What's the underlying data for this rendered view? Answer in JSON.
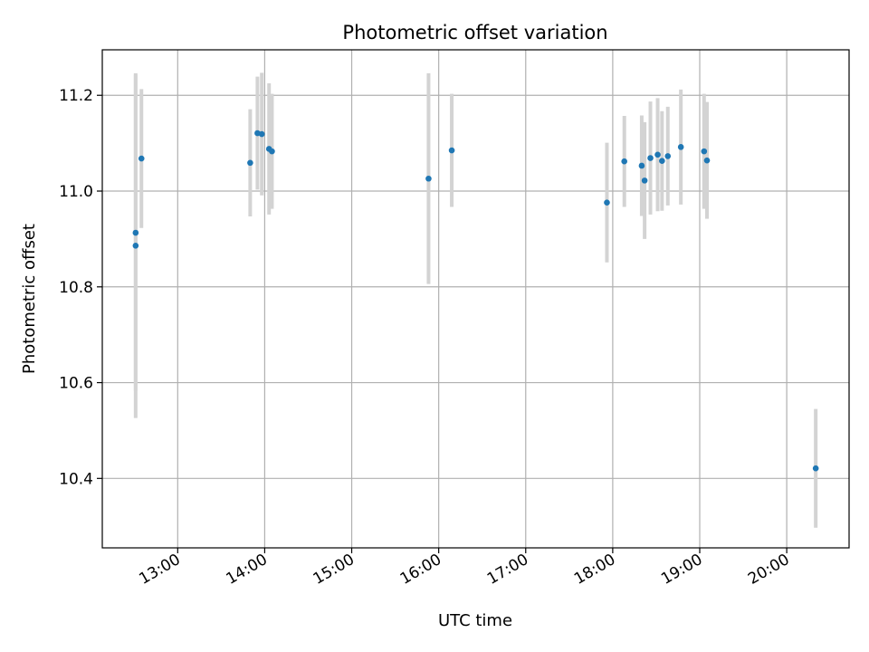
{
  "chart_data": {
    "type": "scatter",
    "title": "Photometric offset variation",
    "xlabel": "UTC time",
    "ylabel": "Photometric offset",
    "x_axis_kind": "time",
    "xlim": [
      "12:08",
      "20:43"
    ],
    "ylim": [
      10.255,
      11.295
    ],
    "x_ticks": [
      "13:00",
      "14:00",
      "15:00",
      "16:00",
      "17:00",
      "18:00",
      "19:00",
      "20:00"
    ],
    "y_ticks": [
      10.4,
      10.6,
      10.8,
      11.0,
      11.2
    ],
    "y_tick_labels": [
      "10.4",
      "10.6",
      "10.8",
      "11.0",
      "11.2"
    ],
    "grid": true,
    "colors": {
      "point": "#1f77b4",
      "error_bar": "#d3d3d3",
      "grid": "#b0b0b0"
    },
    "series": [
      {
        "points": [
          {
            "x": "12:31",
            "y": 10.913,
            "yerr": 0.33
          },
          {
            "x": "12:31",
            "y": 10.886,
            "yerr": 0.36
          },
          {
            "x": "12:35",
            "y": 11.068,
            "yerr": 0.145
          },
          {
            "x": "13:50",
            "y": 11.059,
            "yerr": 0.112
          },
          {
            "x": "13:55",
            "y": 11.121,
            "yerr": 0.118
          },
          {
            "x": "13:58",
            "y": 11.119,
            "yerr": 0.128
          },
          {
            "x": "14:03",
            "y": 11.088,
            "yerr": 0.137
          },
          {
            "x": "14:05",
            "y": 11.083,
            "yerr": 0.12
          },
          {
            "x": "15:53",
            "y": 11.026,
            "yerr": 0.22
          },
          {
            "x": "16:09",
            "y": 11.085,
            "yerr": 0.118
          },
          {
            "x": "17:56",
            "y": 10.976,
            "yerr": 0.125
          },
          {
            "x": "18:08",
            "y": 11.062,
            "yerr": 0.095
          },
          {
            "x": "18:20",
            "y": 11.053,
            "yerr": 0.105
          },
          {
            "x": "18:22",
            "y": 11.022,
            "yerr": 0.122
          },
          {
            "x": "18:26",
            "y": 11.069,
            "yerr": 0.118
          },
          {
            "x": "18:31",
            "y": 11.076,
            "yerr": 0.118
          },
          {
            "x": "18:34",
            "y": 11.063,
            "yerr": 0.104
          },
          {
            "x": "18:38",
            "y": 11.073,
            "yerr": 0.103
          },
          {
            "x": "18:47",
            "y": 11.092,
            "yerr": 0.12
          },
          {
            "x": "19:03",
            "y": 11.083,
            "yerr": 0.12
          },
          {
            "x": "19:05",
            "y": 11.064,
            "yerr": 0.122
          },
          {
            "x": "20:20",
            "y": 10.421,
            "yerr": 0.124
          }
        ]
      }
    ]
  }
}
